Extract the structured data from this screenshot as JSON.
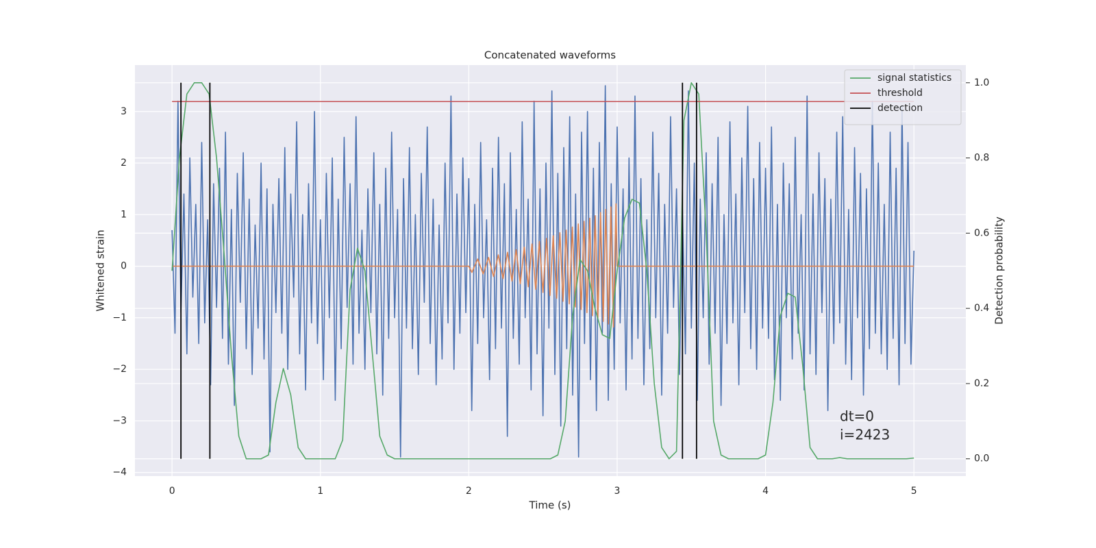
{
  "chart_data": {
    "type": "line",
    "title": "Concatenated waveforms",
    "x_label": "Time (s)",
    "y_label": "Whitened strain",
    "y2_label": "Detection probability",
    "xlim": [
      -0.25,
      5.35
    ],
    "xticks": [
      0,
      1,
      2,
      3,
      4,
      5
    ],
    "ylim": [
      -4.07,
      3.9
    ],
    "yticks": [
      {
        "value": -4,
        "label": "−4"
      },
      {
        "value": -3,
        "label": "−3"
      },
      {
        "value": -2,
        "label": "−2"
      },
      {
        "value": -1,
        "label": "−1"
      },
      0,
      1,
      2,
      3
    ],
    "y2lim": [
      -0.046,
      1.047
    ],
    "y2ticks": [
      {
        "value": 0,
        "label": "0.0"
      },
      0.2,
      0.4,
      0.6,
      0.8,
      {
        "value": 1,
        "label": "1.0"
      }
    ],
    "grid": true,
    "legend": "upper right",
    "annotations": [
      "dt=0",
      "i=2423"
    ],
    "series": [
      {
        "color": "#4c72b0",
        "x": [
          0,
          0.02,
          0.04,
          0.06,
          0.08,
          0.1,
          0.12,
          0.14,
          0.16,
          0.18,
          0.2,
          0.22,
          0.24,
          0.26,
          0.28,
          0.3,
          0.32,
          0.34,
          0.36,
          0.38,
          0.4,
          0.42,
          0.44,
          0.46,
          0.48,
          0.5,
          0.52,
          0.54,
          0.56,
          0.58,
          0.6,
          0.62,
          0.64,
          0.66,
          0.68,
          0.7,
          0.72,
          0.74,
          0.76,
          0.78,
          0.8,
          0.82,
          0.84,
          0.86,
          0.88,
          0.9,
          0.92,
          0.94,
          0.96,
          0.98,
          1,
          1.02,
          1.04,
          1.06,
          1.08,
          1.1,
          1.12,
          1.14,
          1.16,
          1.18,
          1.2,
          1.22,
          1.24,
          1.26,
          1.28,
          1.3,
          1.32,
          1.34,
          1.36,
          1.38,
          1.4,
          1.42,
          1.44,
          1.46,
          1.48,
          1.5,
          1.52,
          1.54,
          1.56,
          1.58,
          1.6,
          1.62,
          1.64,
          1.66,
          1.68,
          1.7,
          1.72,
          1.74,
          1.76,
          1.78,
          1.8,
          1.82,
          1.84,
          1.86,
          1.88,
          1.9,
          1.92,
          1.94,
          1.96,
          1.98,
          2,
          2.02,
          2.04,
          2.06,
          2.08,
          2.1,
          2.12,
          2.14,
          2.16,
          2.18,
          2.2,
          2.22,
          2.24,
          2.26,
          2.28,
          2.3,
          2.32,
          2.34,
          2.36,
          2.38,
          2.4,
          2.42,
          2.44,
          2.46,
          2.48,
          2.5,
          2.52,
          2.54,
          2.56,
          2.58,
          2.6,
          2.62,
          2.64,
          2.66,
          2.68,
          2.7,
          2.72,
          2.74,
          2.76,
          2.78,
          2.8,
          2.82,
          2.84,
          2.86,
          2.88,
          2.9,
          2.92,
          2.94,
          2.96,
          2.98,
          3,
          3.02,
          3.04,
          3.06,
          3.08,
          3.1,
          3.12,
          3.14,
          3.16,
          3.18,
          3.2,
          3.22,
          3.24,
          3.26,
          3.28,
          3.3,
          3.32,
          3.34,
          3.36,
          3.38,
          3.4,
          3.42,
          3.44,
          3.46,
          3.48,
          3.5,
          3.52,
          3.54,
          3.56,
          3.58,
          3.6,
          3.62,
          3.64,
          3.66,
          3.68,
          3.7,
          3.72,
          3.74,
          3.76,
          3.78,
          3.8,
          3.82,
          3.84,
          3.86,
          3.88,
          3.9,
          3.92,
          3.94,
          3.96,
          3.98,
          4,
          4.02,
          4.04,
          4.06,
          4.08,
          4.1,
          4.12,
          4.14,
          4.16,
          4.18,
          4.2,
          4.22,
          4.24,
          4.26,
          4.28,
          4.3,
          4.32,
          4.34,
          4.36,
          4.38,
          4.4,
          4.42,
          4.44,
          4.46,
          4.48,
          4.5,
          4.52,
          4.54,
          4.56,
          4.58,
          4.6,
          4.62,
          4.64,
          4.66,
          4.68,
          4.7,
          4.72,
          4.74,
          4.76,
          4.78,
          4.8,
          4.82,
          4.84,
          4.86,
          4.88,
          4.9,
          4.92,
          4.94,
          4.96,
          4.98,
          5
        ],
        "values": [
          0.7,
          -1.3,
          3.2,
          -0.9,
          1.4,
          -1.7,
          2.1,
          -0.6,
          1.2,
          -1.5,
          2.4,
          -1.1,
          0.9,
          -2.3,
          1.6,
          -0.8,
          1.9,
          -1.4,
          2.6,
          -1.9,
          1.1,
          -2.7,
          1.8,
          -0.7,
          2.2,
          -1.6,
          1.3,
          -2.1,
          0.8,
          -1.2,
          2.0,
          -1.8,
          1.5,
          -3.6,
          1.2,
          -0.9,
          1.7,
          -1.3,
          2.3,
          -2.0,
          1.4,
          -0.6,
          2.8,
          -1.7,
          1.0,
          -2.4,
          1.6,
          -1.1,
          3.0,
          -1.5,
          0.9,
          -2.2,
          1.8,
          -1.0,
          2.1,
          -2.6,
          1.3,
          -1.6,
          2.5,
          -0.8,
          1.6,
          -1.9,
          2.9,
          -1.3,
          0.7,
          -2.0,
          1.5,
          -0.9,
          2.2,
          -1.7,
          1.2,
          -2.5,
          1.9,
          -1.4,
          2.6,
          -1.0,
          1.1,
          -3.7,
          1.7,
          -1.2,
          2.3,
          -1.6,
          1.0,
          -2.1,
          1.8,
          -0.7,
          2.7,
          -1.5,
          1.3,
          -2.3,
          0.8,
          -1.8,
          2.0,
          -1.1,
          3.3,
          -2.0,
          1.4,
          -1.3,
          2.1,
          -0.9,
          1.7,
          -2.8,
          1.2,
          -1.5,
          2.4,
          -1.0,
          0.9,
          -2.2,
          1.9,
          -1.6,
          2.5,
          -1.2,
          1.6,
          -3.3,
          2.2,
          -1.4,
          1.1,
          -1.9,
          2.8,
          -1.0,
          1.3,
          -2.4,
          3.2,
          -1.7,
          1.5,
          -2.9,
          2.0,
          -1.2,
          3.4,
          -2.1,
          1.8,
          -3.1,
          2.3,
          -1.6,
          2.9,
          -2.5,
          1.4,
          -3.7,
          2.6,
          -1.5,
          3.0,
          -2.2,
          1.9,
          -2.8,
          2.4,
          -1.3,
          3.5,
          -2.6,
          1.6,
          -2.0,
          2.7,
          -1.1,
          1.5,
          -2.4,
          2.1,
          -1.8,
          3.3,
          -1.4,
          1.7,
          -2.3,
          0.9,
          -1.6,
          2.6,
          -1.0,
          1.8,
          -2.5,
          1.2,
          -1.3,
          2.9,
          -0.8,
          1.5,
          -2.1,
          1.1,
          -1.7,
          3.4,
          -1.2,
          2.0,
          -2.6,
          1.3,
          -1.0,
          2.2,
          -1.9,
          1.6,
          -1.3,
          2.5,
          -2.7,
          1.0,
          -1.5,
          2.8,
          -1.1,
          1.4,
          -2.3,
          2.1,
          -0.9,
          3.1,
          -1.6,
          1.7,
          -2.0,
          2.4,
          -1.2,
          1.9,
          -1.4,
          2.7,
          -2.2,
          1.2,
          -2.6,
          2.0,
          -1.0,
          1.6,
          -1.8,
          2.5,
          -1.3,
          1.0,
          -2.4,
          3.3,
          -1.7,
          1.4,
          -2.1,
          2.2,
          -0.9,
          1.7,
          -2.8,
          1.3,
          -1.5,
          2.6,
          -1.1,
          2.9,
          -1.9,
          1.1,
          -2.2,
          2.3,
          -1.0,
          1.8,
          -2.5,
          1.5,
          -1.6,
          3.2,
          -1.3,
          2.0,
          -1.7,
          1.2,
          -2.0,
          2.6,
          -1.4,
          1.9,
          -2.3,
          3.1,
          -1.5,
          2.4,
          -1.9,
          0.3
        ]
      },
      {
        "color": "#dd8452",
        "x": [
          0,
          2,
          2.021,
          2.06,
          2.097,
          2.133,
          2.167,
          2.199,
          2.231,
          2.261,
          2.291,
          2.319,
          2.347,
          2.374,
          2.401,
          2.426,
          2.451,
          2.476,
          2.5,
          2.524,
          2.547,
          2.569,
          2.592,
          2.614,
          2.635,
          2.656,
          2.677,
          2.698,
          2.718,
          2.738,
          2.757,
          2.777,
          2.796,
          2.815,
          2.833,
          2.852,
          2.87,
          2.888,
          2.906,
          2.923,
          2.941,
          2.958,
          2.975,
          2.992,
          3,
          5
        ],
        "values": [
          0,
          0,
          -0.12,
          0.14,
          -0.15,
          0.17,
          -0.2,
          0.22,
          -0.24,
          0.27,
          -0.29,
          0.32,
          -0.34,
          0.37,
          -0.4,
          0.43,
          -0.45,
          0.48,
          -0.51,
          0.54,
          -0.57,
          0.59,
          -0.62,
          0.65,
          -0.68,
          0.7,
          -0.73,
          0.76,
          -0.79,
          0.82,
          -0.84,
          0.87,
          -0.9,
          0.93,
          -0.96,
          0.98,
          -1.01,
          1.04,
          -1.07,
          1.1,
          -1.12,
          1.15,
          -1.18,
          1.21,
          0,
          0
        ]
      },
      {
        "name": "signal statistics",
        "color": "#55a868",
        "axis": "y2",
        "x": [
          0,
          0.05,
          0.1,
          0.15,
          0.2,
          0.25,
          0.3,
          0.35,
          0.4,
          0.45,
          0.5,
          0.55,
          0.6,
          0.65,
          0.7,
          0.75,
          0.8,
          0.85,
          0.9,
          0.95,
          1,
          1.05,
          1.1,
          1.15,
          1.2,
          1.25,
          1.3,
          1.35,
          1.4,
          1.45,
          1.5,
          1.55,
          1.6,
          1.65,
          1.7,
          1.75,
          1.8,
          1.85,
          1.9,
          1.95,
          2,
          2.05,
          2.1,
          2.15,
          2.2,
          2.25,
          2.3,
          2.35,
          2.4,
          2.45,
          2.5,
          2.55,
          2.6,
          2.65,
          2.7,
          2.75,
          2.8,
          2.85,
          2.9,
          2.95,
          3,
          3.05,
          3.1,
          3.15,
          3.2,
          3.25,
          3.3,
          3.35,
          3.4,
          3.45,
          3.5,
          3.55,
          3.6,
          3.65,
          3.7,
          3.75,
          3.8,
          3.85,
          3.9,
          3.95,
          4,
          4.05,
          4.1,
          4.15,
          4.2,
          4.25,
          4.3,
          4.35,
          4.4,
          4.45,
          4.5,
          4.55,
          4.6,
          4.65,
          4.7,
          4.75,
          4.8,
          4.85,
          4.9,
          4.95,
          5
        ],
        "values": [
          0.5,
          0.8,
          0.97,
          1,
          1,
          0.97,
          0.8,
          0.55,
          0.28,
          0.06,
          0,
          0,
          0,
          0.01,
          0.15,
          0.24,
          0.17,
          0.03,
          0,
          0,
          0,
          0,
          0,
          0.05,
          0.45,
          0.56,
          0.5,
          0.28,
          0.06,
          0.01,
          0,
          0,
          0,
          0,
          0,
          0,
          0,
          0,
          0,
          0,
          0,
          0,
          0,
          0,
          0,
          0,
          0,
          0,
          0,
          0,
          0,
          0,
          0.01,
          0.1,
          0.38,
          0.53,
          0.5,
          0.4,
          0.33,
          0.32,
          0.5,
          0.64,
          0.69,
          0.68,
          0.5,
          0.2,
          0.03,
          0,
          0.02,
          0.9,
          1,
          0.97,
          0.6,
          0.1,
          0.01,
          0,
          0,
          0,
          0,
          0,
          0.01,
          0.15,
          0.38,
          0.44,
          0.43,
          0.25,
          0.03,
          0,
          0,
          0,
          0.003,
          0,
          0,
          0,
          0,
          0,
          0,
          0,
          0,
          0,
          0.002
        ]
      },
      {
        "name": "threshold",
        "color": "#c44e52",
        "axis": "y2",
        "x": [
          0,
          5
        ],
        "values": [
          0.95,
          0.95
        ]
      },
      {
        "name": "detection",
        "type": "vlines",
        "color": "#000000",
        "axis": "y2",
        "x": [
          0.06,
          0.255,
          3.44,
          3.535
        ],
        "ymin": 0,
        "ymax": 1
      }
    ]
  }
}
